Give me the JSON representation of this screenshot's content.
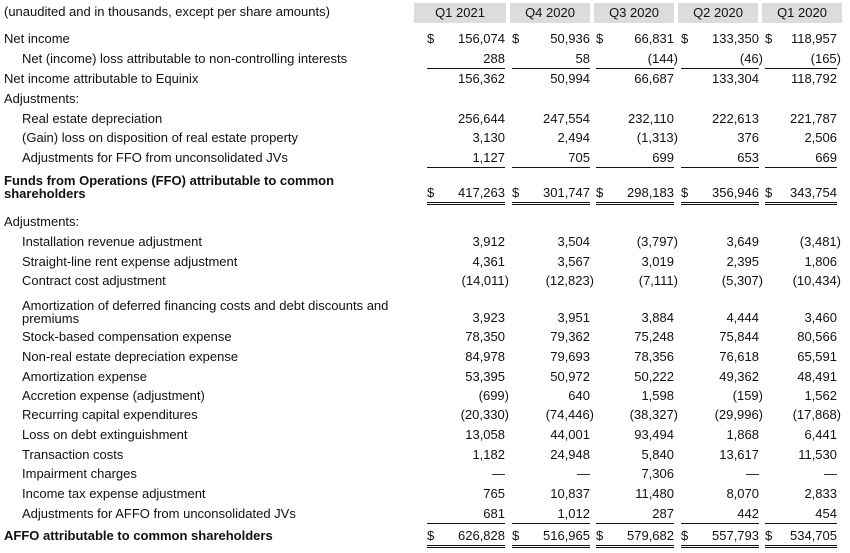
{
  "caption": "(unaudited and in thousands, except per share amounts)",
  "columns": [
    "Q1 2021",
    "Q4 2020",
    "Q3 2020",
    "Q2 2020",
    "Q1 2020"
  ],
  "rows": [
    {
      "label": "Net income",
      "style": "plain",
      "currency": true,
      "values": [
        "156,074",
        "50,936",
        "66,831",
        "133,350",
        "118,957"
      ]
    },
    {
      "label": "Net (income) loss attributable to non-controlling interests",
      "style": "indent",
      "values": [
        "288",
        "58",
        "(144)",
        "(46)",
        "(165)"
      ]
    },
    {
      "label": "Net income attributable to Equinix",
      "style": "plain",
      "values": [
        "156,362",
        "50,994",
        "66,687",
        "133,304",
        "118,792"
      ]
    },
    {
      "label": "Adjustments:",
      "style": "plain",
      "values": [
        "",
        "",
        "",
        "",
        ""
      ]
    },
    {
      "label": "Real estate depreciation",
      "style": "indent",
      "values": [
        "256,644",
        "247,554",
        "232,110",
        "222,613",
        "221,787"
      ]
    },
    {
      "label": "(Gain) loss on disposition of real estate property",
      "style": "indent",
      "values": [
        "3,130",
        "2,494",
        "(1,313)",
        "376",
        "2,506"
      ]
    },
    {
      "label": "Adjustments for FFO from unconsolidated JVs",
      "style": "indent",
      "values": [
        "1,127",
        "705",
        "699",
        "653",
        "669"
      ]
    },
    {
      "label": "Funds from Operations (FFO) attributable to common shareholders",
      "style": "bold",
      "currency": true,
      "values": [
        "417,263",
        "301,747",
        "298,183",
        "356,946",
        "343,754"
      ]
    },
    {
      "label": "Adjustments:",
      "style": "plain",
      "values": [
        "",
        "",
        "",
        "",
        ""
      ]
    },
    {
      "label": "Installation revenue adjustment",
      "style": "indent",
      "values": [
        "3,912",
        "3,504",
        "(3,797)",
        "3,649",
        "(3,481)"
      ]
    },
    {
      "label": "Straight-line rent expense adjustment",
      "style": "indent",
      "values": [
        "4,361",
        "3,567",
        "3,019",
        "2,395",
        "1,806"
      ]
    },
    {
      "label": "Contract cost adjustment",
      "style": "indent",
      "values": [
        "(14,011)",
        "(12,823)",
        "(7,111)",
        "(5,307)",
        "(10,434)"
      ]
    },
    {
      "label": "Amortization of deferred financing costs and debt discounts and premiums",
      "style": "indent",
      "values": [
        "3,923",
        "3,951",
        "3,884",
        "4,444",
        "3,460"
      ]
    },
    {
      "label": "Stock-based compensation expense",
      "style": "indent",
      "values": [
        "78,350",
        "79,362",
        "75,248",
        "75,844",
        "80,566"
      ]
    },
    {
      "label": "Non-real estate depreciation expense",
      "style": "indent",
      "values": [
        "84,978",
        "79,693",
        "78,356",
        "76,618",
        "65,591"
      ]
    },
    {
      "label": "Amortization expense",
      "style": "indent",
      "values": [
        "53,395",
        "50,972",
        "50,222",
        "49,362",
        "48,491"
      ]
    },
    {
      "label": "Accretion expense (adjustment)",
      "style": "indent",
      "values": [
        "(699)",
        "640",
        "1,598",
        "(159)",
        "1,562"
      ]
    },
    {
      "label": "Recurring capital expenditures",
      "style": "indent",
      "values": [
        "(20,330)",
        "(74,446)",
        "(38,327)",
        "(29,996)",
        "(17,868)"
      ]
    },
    {
      "label": "Loss on debt extinguishment",
      "style": "indent",
      "values": [
        "13,058",
        "44,001",
        "93,494",
        "1,868",
        "6,441"
      ]
    },
    {
      "label": "Transaction costs",
      "style": "indent",
      "values": [
        "1,182",
        "24,948",
        "5,840",
        "13,617",
        "11,530"
      ]
    },
    {
      "label": "Impairment charges",
      "style": "indent",
      "values": [
        "—",
        "—",
        "7,306",
        "—",
        "—"
      ]
    },
    {
      "label": "Income tax expense adjustment",
      "style": "indent",
      "values": [
        "765",
        "10,837",
        "11,480",
        "8,070",
        "2,833"
      ]
    },
    {
      "label": "Adjustments for AFFO from unconsolidated JVs",
      "style": "indent",
      "values": [
        "681",
        "1,012",
        "287",
        "442",
        "454"
      ]
    },
    {
      "label": "AFFO attributable to common shareholders",
      "style": "bold",
      "currency": true,
      "values": [
        "626,828",
        "516,965",
        "579,682",
        "557,793",
        "534,705"
      ]
    }
  ],
  "currency_symbol": "$"
}
